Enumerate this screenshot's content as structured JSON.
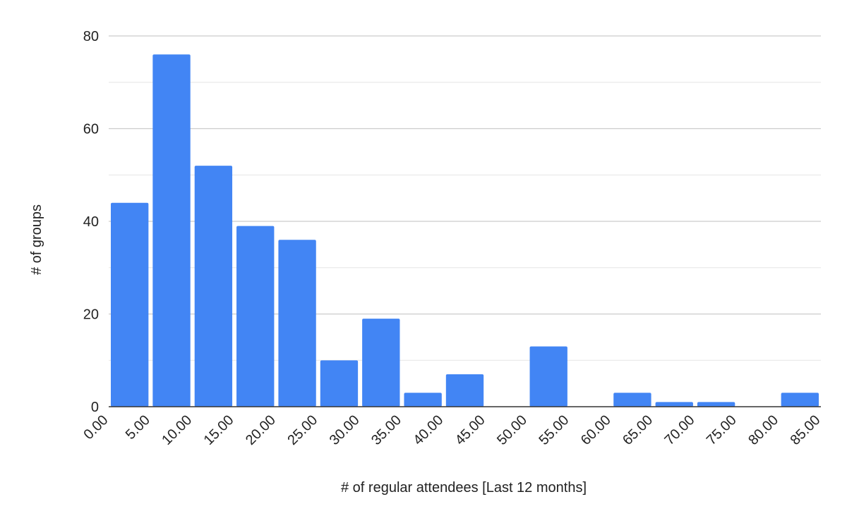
{
  "chart_data": {
    "type": "bar",
    "title": "",
    "xlabel": "# of regular attendees [Last 12 months]",
    "ylabel": "# of groups",
    "x_bin_edges": [
      "0.00",
      "5.00",
      "10.00",
      "15.00",
      "20.00",
      "25.00",
      "30.00",
      "35.00",
      "40.00",
      "45.00",
      "50.00",
      "55.00",
      "60.00",
      "65.00",
      "70.00",
      "75.00",
      "80.00",
      "85.00"
    ],
    "values": [
      44,
      76,
      52,
      39,
      36,
      10,
      19,
      3,
      7,
      0,
      13,
      0,
      3,
      1,
      1,
      0,
      3
    ],
    "y_ticks": [
      0,
      20,
      40,
      60,
      80
    ],
    "ylim": [
      0,
      80
    ],
    "grid": true,
    "legend": "none",
    "bar_color": "#4285f4",
    "major_grid_color": "#cccccc",
    "minor_grid_color": "#e6e6e6",
    "baseline_color": "#333333"
  }
}
